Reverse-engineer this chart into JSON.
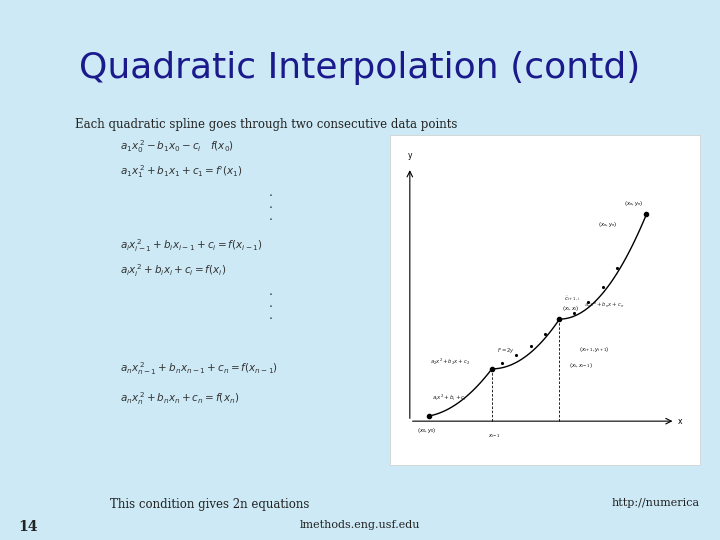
{
  "background_color": "#cce9f5",
  "title": "Quadratic Interpolation (contd)",
  "title_color": "#1a1a8c",
  "title_fontsize": 26,
  "slide_number": "14",
  "footer_left": "lmethods.eng.usf.edu",
  "footer_right": "http://numerica",
  "body_text_color": "#222222",
  "equation_color": "#333333",
  "intro_text": "Each quadratic spline goes through two consecutive data points",
  "footer_text": "This condition gives 2n equations",
  "panel_bg": "#ffffff",
  "eq_fontsize": 7.5,
  "intro_fontsize": 8.5
}
